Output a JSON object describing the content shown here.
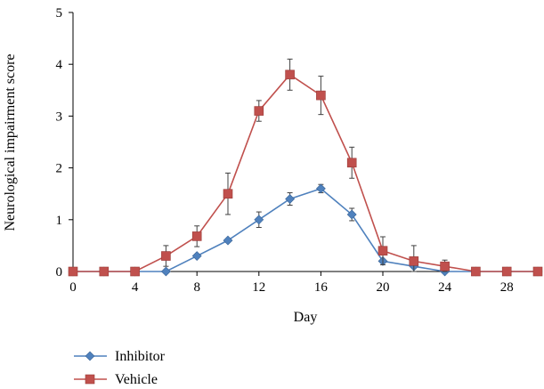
{
  "chart_data": {
    "type": "line",
    "title": "",
    "xlabel": "Day",
    "ylabel": "Neurological impairment score",
    "xlim": [
      0,
      30
    ],
    "ylim": [
      0,
      5
    ],
    "x_ticks": [
      0,
      4,
      8,
      12,
      16,
      20,
      24,
      28
    ],
    "y_ticks": [
      0,
      1,
      2,
      3,
      4,
      5
    ],
    "grid": false,
    "legend_position": "bottom-left",
    "x": [
      0,
      2,
      4,
      6,
      8,
      10,
      12,
      14,
      16,
      18,
      20,
      22,
      24,
      26,
      28,
      30
    ],
    "series": [
      {
        "name": "Inhibitor",
        "color": "#4f81bd",
        "marker": "diamond",
        "values": [
          0,
          0,
          0,
          0,
          0.3,
          0.6,
          1.0,
          1.4,
          1.6,
          1.1,
          0.2,
          0.1,
          0,
          0,
          0,
          0
        ],
        "errors": [
          0,
          0,
          0,
          0,
          0,
          0,
          0.15,
          0.12,
          0.08,
          0.12,
          0,
          0,
          0,
          0,
          0,
          0
        ]
      },
      {
        "name": "Vehicle",
        "color": "#c0504d",
        "marker": "square",
        "values": [
          0,
          0,
          0,
          0.3,
          0.68,
          1.5,
          3.1,
          3.8,
          3.4,
          2.1,
          0.4,
          0.2,
          0.1,
          0,
          0,
          0
        ],
        "errors": [
          0,
          0,
          0.05,
          0.2,
          0.2,
          0.4,
          0.2,
          0.3,
          0.37,
          0.3,
          0.27,
          0.3,
          0.12,
          0,
          0,
          0
        ]
      }
    ]
  }
}
